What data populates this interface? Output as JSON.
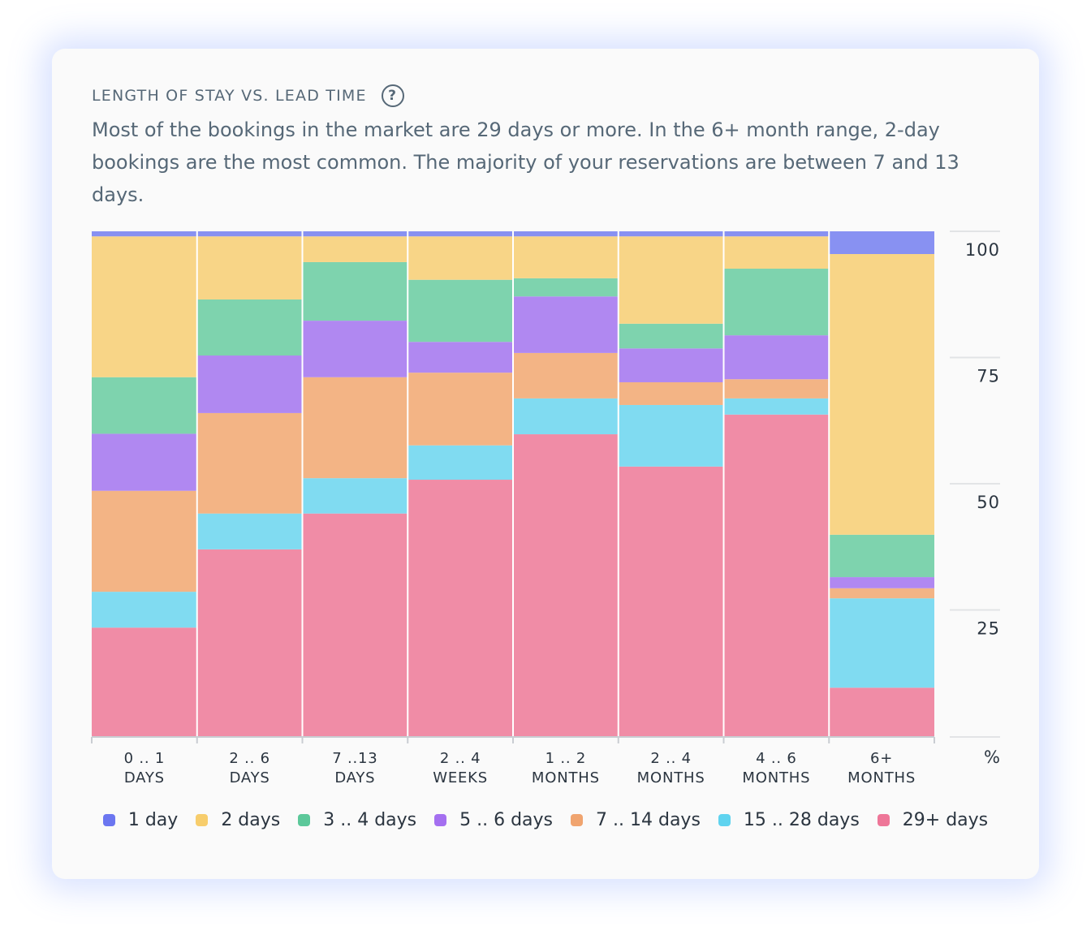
{
  "header": {
    "title": "LENGTH OF STAY VS. LEAD TIME",
    "help_label": "?",
    "description": "Most of the bookings in the market are 29 days or more. In the 6+ month range, 2-day bookings are the most common. The majority of your reservations are between 7 and 13 days."
  },
  "chart_data": {
    "type": "bar",
    "stacked": true,
    "normalized": true,
    "categories": [
      [
        "0 .. 1",
        "DAYS"
      ],
      [
        "2 .. 6",
        "DAYS"
      ],
      [
        "7 ..13",
        "DAYS"
      ],
      [
        "2 .. 4",
        "WEEKS"
      ],
      [
        "1 .. 2",
        "MONTHS"
      ],
      [
        "2 .. 4",
        "MONTHS"
      ],
      [
        "4 .. 6",
        "MONTHS"
      ],
      [
        "6+",
        "MONTHS"
      ]
    ],
    "ylabel": "%",
    "ylim": [
      0,
      100
    ],
    "yticks": [
      25,
      50,
      75,
      100
    ],
    "y_axis_side": "right",
    "grid": true,
    "legend_position": "bottom",
    "series": [
      {
        "name": "29+ days",
        "color": "#f08ca6",
        "legend_color": "#ee7698",
        "values": [
          21.5,
          37.0,
          44.1,
          50.8,
          59.8,
          53.4,
          63.7,
          9.6
        ]
      },
      {
        "name": "15 .. 28 days",
        "color": "#80dbf1",
        "legend_color": "#5fd3ef",
        "values": [
          7.1,
          7.1,
          7.0,
          6.8,
          7.1,
          12.2,
          3.2,
          17.7
        ]
      },
      {
        "name": "7 .. 14 days",
        "color": "#f3b485",
        "legend_color": "#f0a46f",
        "values": [
          20.0,
          19.9,
          20.0,
          14.4,
          9.0,
          4.5,
          3.8,
          2.0
        ]
      },
      {
        "name": "5 .. 6 days",
        "color": "#b088f1",
        "legend_color": "#a46ff0",
        "values": [
          11.3,
          11.4,
          11.2,
          6.1,
          11.2,
          6.7,
          8.7,
          2.2
        ]
      },
      {
        "name": "3 .. 4 days",
        "color": "#7ed3ae",
        "legend_color": "#5cc89a",
        "values": [
          11.2,
          11.1,
          11.6,
          12.3,
          3.6,
          4.9,
          13.2,
          8.4
        ]
      },
      {
        "name": "2 days",
        "color": "#f8d587",
        "legend_color": "#f7cd6c",
        "values": [
          27.9,
          12.5,
          5.1,
          8.6,
          8.3,
          17.3,
          6.4,
          55.6
        ]
      },
      {
        "name": "1 day",
        "color": "#8891f2",
        "legend_color": "#6b76f0",
        "values": [
          1.0,
          1.0,
          1.0,
          1.0,
          1.0,
          1.0,
          1.0,
          4.5
        ]
      }
    ],
    "legend_order": [
      "1 day",
      "2 days",
      "3 .. 4 days",
      "5 .. 6 days",
      "7 .. 14 days",
      "15 .. 28 days",
      "29+ days"
    ]
  }
}
